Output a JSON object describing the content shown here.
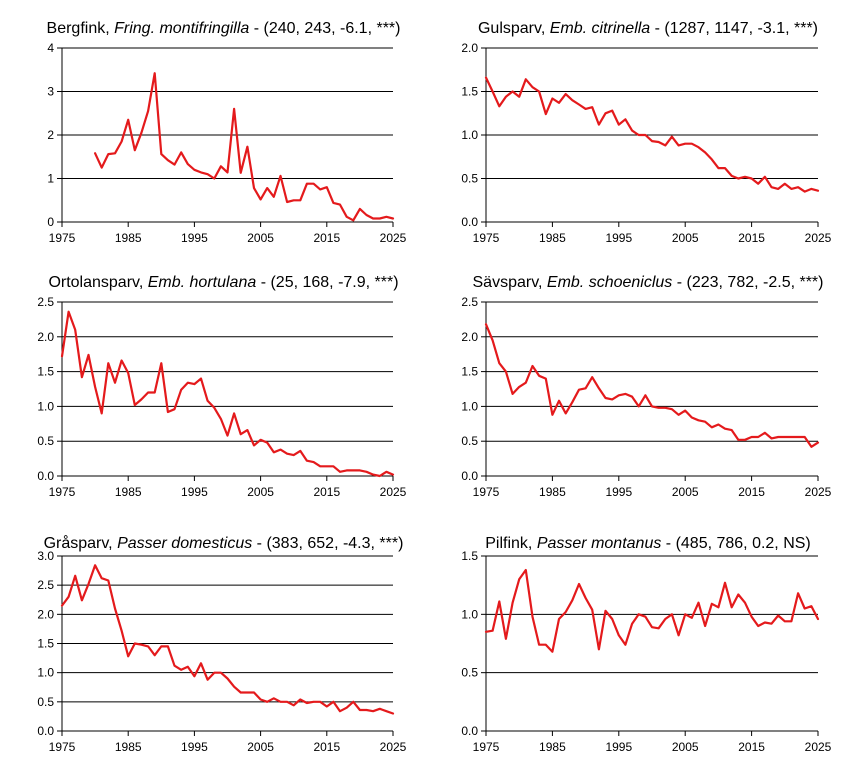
{
  "colors": {
    "series": "#e41a1c",
    "grid": "#000000",
    "axis": "#000000"
  },
  "chart_data": [
    {
      "type": "line",
      "title": {
        "common": "Bergfink, ",
        "latin": "Fring. montifringilla",
        "stats": " - (240, 243, -6.1, ***)"
      },
      "xlim": [
        1975,
        2025
      ],
      "ylim": [
        0,
        4
      ],
      "xticks": [
        "1975",
        "1985",
        "1995",
        "2005",
        "2015",
        "2025"
      ],
      "yticks": [
        "0",
        "1",
        "2",
        "3",
        "4"
      ],
      "grid": "horizontal",
      "x": [
        1980,
        1981,
        1982,
        1983,
        1984,
        1985,
        1986,
        1987,
        1988,
        1989,
        1990,
        1991,
        1992,
        1993,
        1994,
        1995,
        1996,
        1997,
        1998,
        1999,
        2000,
        2001,
        2002,
        2003,
        2004,
        2005,
        2006,
        2007,
        2008,
        2009,
        2010,
        2011,
        2012,
        2013,
        2014,
        2015,
        2016,
        2017,
        2018,
        2019,
        2020,
        2021,
        2022,
        2023,
        2024,
        2025
      ],
      "values": [
        1.58,
        1.25,
        1.56,
        1.58,
        1.85,
        2.35,
        1.65,
        2.05,
        2.55,
        3.42,
        1.56,
        1.42,
        1.32,
        1.6,
        1.33,
        1.2,
        1.14,
        1.1,
        1.0,
        1.28,
        1.14,
        2.6,
        1.13,
        1.73,
        0.78,
        0.52,
        0.78,
        0.58,
        1.06,
        0.46,
        0.5,
        0.5,
        0.88,
        0.88,
        0.75,
        0.8,
        0.44,
        0.4,
        0.12,
        0.04,
        0.3,
        0.16,
        0.08,
        0.08,
        0.12,
        0.08
      ]
    },
    {
      "type": "line",
      "title": {
        "common": "Gulsparv, ",
        "latin": "Emb. citrinella",
        "stats": " - (1287, 1147, -3.1, ***)"
      },
      "xlim": [
        1975,
        2025
      ],
      "ylim": [
        0,
        2
      ],
      "xticks": [
        "1975",
        "1985",
        "1995",
        "2005",
        "2015",
        "2025"
      ],
      "yticks": [
        "0.0",
        "0.5",
        "1.0",
        "1.5",
        "2.0"
      ],
      "grid": "horizontal",
      "x": [
        1975,
        1976,
        1977,
        1978,
        1979,
        1980,
        1981,
        1982,
        1983,
        1984,
        1985,
        1986,
        1987,
        1988,
        1989,
        1990,
        1991,
        1992,
        1993,
        1994,
        1995,
        1996,
        1997,
        1998,
        1999,
        2000,
        2001,
        2002,
        2003,
        2004,
        2005,
        2006,
        2007,
        2008,
        2009,
        2010,
        2011,
        2012,
        2013,
        2014,
        2015,
        2016,
        2017,
        2018,
        2019,
        2020,
        2021,
        2022,
        2023,
        2024,
        2025
      ],
      "values": [
        1.66,
        1.5,
        1.33,
        1.44,
        1.5,
        1.44,
        1.64,
        1.55,
        1.5,
        1.24,
        1.42,
        1.37,
        1.47,
        1.4,
        1.35,
        1.3,
        1.32,
        1.12,
        1.25,
        1.28,
        1.12,
        1.18,
        1.05,
        1.0,
        1.0,
        0.93,
        0.92,
        0.88,
        0.98,
        0.88,
        0.9,
        0.9,
        0.86,
        0.8,
        0.72,
        0.62,
        0.62,
        0.53,
        0.5,
        0.52,
        0.5,
        0.44,
        0.52,
        0.4,
        0.38,
        0.44,
        0.38,
        0.4,
        0.35,
        0.38,
        0.36
      ]
    },
    {
      "type": "line",
      "title": {
        "common": "Ortolansparv, ",
        "latin": "Emb. hortulana",
        "stats": " - (25, 168, -7.9, ***)"
      },
      "xlim": [
        1975,
        2025
      ],
      "ylim": [
        0,
        2.5
      ],
      "xticks": [
        "1975",
        "1985",
        "1995",
        "2005",
        "2015",
        "2025"
      ],
      "yticks": [
        "0.0",
        "0.5",
        "1.0",
        "1.5",
        "2.0",
        "2.5"
      ],
      "grid": "horizontal",
      "x": [
        1975,
        1976,
        1977,
        1978,
        1979,
        1980,
        1981,
        1982,
        1983,
        1984,
        1985,
        1986,
        1987,
        1988,
        1989,
        1990,
        1991,
        1992,
        1993,
        1994,
        1995,
        1996,
        1997,
        1998,
        1999,
        2000,
        2001,
        2002,
        2003,
        2004,
        2005,
        2006,
        2007,
        2008,
        2009,
        2010,
        2011,
        2012,
        2013,
        2014,
        2015,
        2016,
        2017,
        2018,
        2019,
        2020,
        2021,
        2022,
        2023,
        2024,
        2025
      ],
      "values": [
        1.72,
        2.36,
        2.1,
        1.42,
        1.74,
        1.28,
        0.9,
        1.62,
        1.34,
        1.66,
        1.48,
        1.02,
        1.1,
        1.2,
        1.2,
        1.62,
        0.92,
        0.96,
        1.24,
        1.34,
        1.32,
        1.4,
        1.08,
        0.98,
        0.82,
        0.58,
        0.9,
        0.6,
        0.66,
        0.44,
        0.52,
        0.48,
        0.34,
        0.38,
        0.32,
        0.3,
        0.36,
        0.22,
        0.2,
        0.14,
        0.14,
        0.14,
        0.06,
        0.08,
        0.08,
        0.08,
        0.06,
        0.02,
        0.0,
        0.06,
        0.02
      ]
    },
    {
      "type": "line",
      "title": {
        "common": "Sävsparv, ",
        "latin": "Emb. schoeniclus",
        "stats": " - (223, 782, -2.5, ***)"
      },
      "xlim": [
        1975,
        2025
      ],
      "ylim": [
        0,
        2.5
      ],
      "xticks": [
        "1975",
        "1985",
        "1995",
        "2005",
        "2015",
        "2025"
      ],
      "yticks": [
        "0.0",
        "0.5",
        "1.0",
        "1.5",
        "2.0",
        "2.5"
      ],
      "grid": "horizontal",
      "x": [
        1975,
        1976,
        1977,
        1978,
        1979,
        1980,
        1981,
        1982,
        1983,
        1984,
        1985,
        1986,
        1987,
        1988,
        1989,
        1990,
        1991,
        1992,
        1993,
        1994,
        1995,
        1996,
        1997,
        1998,
        1999,
        2000,
        2001,
        2002,
        2003,
        2004,
        2005,
        2006,
        2007,
        2008,
        2009,
        2010,
        2011,
        2012,
        2013,
        2014,
        2015,
        2016,
        2017,
        2018,
        2019,
        2020,
        2021,
        2022,
        2023,
        2024,
        2025
      ],
      "values": [
        2.18,
        1.95,
        1.62,
        1.5,
        1.18,
        1.28,
        1.34,
        1.58,
        1.44,
        1.4,
        0.88,
        1.08,
        0.9,
        1.06,
        1.24,
        1.26,
        1.42,
        1.26,
        1.12,
        1.1,
        1.16,
        1.18,
        1.14,
        1.0,
        1.16,
        1.0,
        0.98,
        0.98,
        0.96,
        0.88,
        0.94,
        0.84,
        0.8,
        0.78,
        0.7,
        0.74,
        0.68,
        0.66,
        0.52,
        0.52,
        0.56,
        0.56,
        0.62,
        0.54,
        0.56,
        0.56,
        0.56,
        0.56,
        0.56,
        0.42,
        0.48
      ]
    },
    {
      "type": "line",
      "title": {
        "common": "Gråsparv, ",
        "latin": "Passer domesticus",
        "stats": " - (383, 652, -4.3, ***)"
      },
      "xlim": [
        1975,
        2025
      ],
      "ylim": [
        0,
        3
      ],
      "xticks": [
        "1975",
        "1985",
        "1995",
        "2005",
        "2015",
        "2025"
      ],
      "yticks": [
        "0.0",
        "0.5",
        "1.0",
        "1.5",
        "2.0",
        "2.5",
        "3.0"
      ],
      "grid": "horizontal",
      "x": [
        1975,
        1976,
        1977,
        1978,
        1979,
        1980,
        1981,
        1982,
        1983,
        1984,
        1985,
        1986,
        1987,
        1988,
        1989,
        1990,
        1991,
        1992,
        1993,
        1994,
        1995,
        1996,
        1997,
        1998,
        1999,
        2000,
        2001,
        2002,
        2003,
        2004,
        2005,
        2006,
        2007,
        2008,
        2009,
        2010,
        2011,
        2012,
        2013,
        2014,
        2015,
        2016,
        2017,
        2018,
        2019,
        2020,
        2021,
        2022,
        2023,
        2024,
        2025
      ],
      "values": [
        2.15,
        2.3,
        2.66,
        2.24,
        2.52,
        2.84,
        2.62,
        2.58,
        2.1,
        1.72,
        1.28,
        1.5,
        1.48,
        1.45,
        1.3,
        1.45,
        1.45,
        1.12,
        1.05,
        1.1,
        0.94,
        1.16,
        0.88,
        1.0,
        1.0,
        0.9,
        0.76,
        0.66,
        0.66,
        0.66,
        0.54,
        0.5,
        0.56,
        0.5,
        0.5,
        0.44,
        0.54,
        0.48,
        0.5,
        0.5,
        0.42,
        0.5,
        0.34,
        0.4,
        0.5,
        0.36,
        0.36,
        0.34,
        0.38,
        0.34,
        0.3
      ]
    },
    {
      "type": "line",
      "title": {
        "common": "Pilfink, ",
        "latin": "Passer montanus",
        "stats": " - (485, 786, 0.2, NS)"
      },
      "xlim": [
        1975,
        2025
      ],
      "ylim": [
        0,
        1.5
      ],
      "xticks": [
        "1975",
        "1985",
        "1995",
        "2005",
        "2015",
        "2025"
      ],
      "yticks": [
        "0.0",
        "0.5",
        "1.0",
        "1.5"
      ],
      "grid": "horizontal",
      "x": [
        1975,
        1976,
        1977,
        1978,
        1979,
        1980,
        1981,
        1982,
        1983,
        1984,
        1985,
        1986,
        1987,
        1988,
        1989,
        1990,
        1991,
        1992,
        1993,
        1994,
        1995,
        1996,
        1997,
        1998,
        1999,
        2000,
        2001,
        2002,
        2003,
        2004,
        2005,
        2006,
        2007,
        2008,
        2009,
        2010,
        2011,
        2012,
        2013,
        2014,
        2015,
        2016,
        2017,
        2018,
        2019,
        2020,
        2021,
        2022,
        2023,
        2024,
        2025
      ],
      "values": [
        0.85,
        0.86,
        1.11,
        0.79,
        1.1,
        1.3,
        1.38,
        0.98,
        0.74,
        0.74,
        0.68,
        0.96,
        1.02,
        1.12,
        1.26,
        1.14,
        1.04,
        0.7,
        1.03,
        0.96,
        0.82,
        0.74,
        0.92,
        1.0,
        0.98,
        0.89,
        0.88,
        0.96,
        1.0,
        0.82,
        1.0,
        0.97,
        1.1,
        0.9,
        1.09,
        1.06,
        1.27,
        1.06,
        1.17,
        1.1,
        0.98,
        0.9,
        0.93,
        0.92,
        0.99,
        0.94,
        0.94,
        1.18,
        1.05,
        1.07,
        0.96
      ]
    }
  ]
}
